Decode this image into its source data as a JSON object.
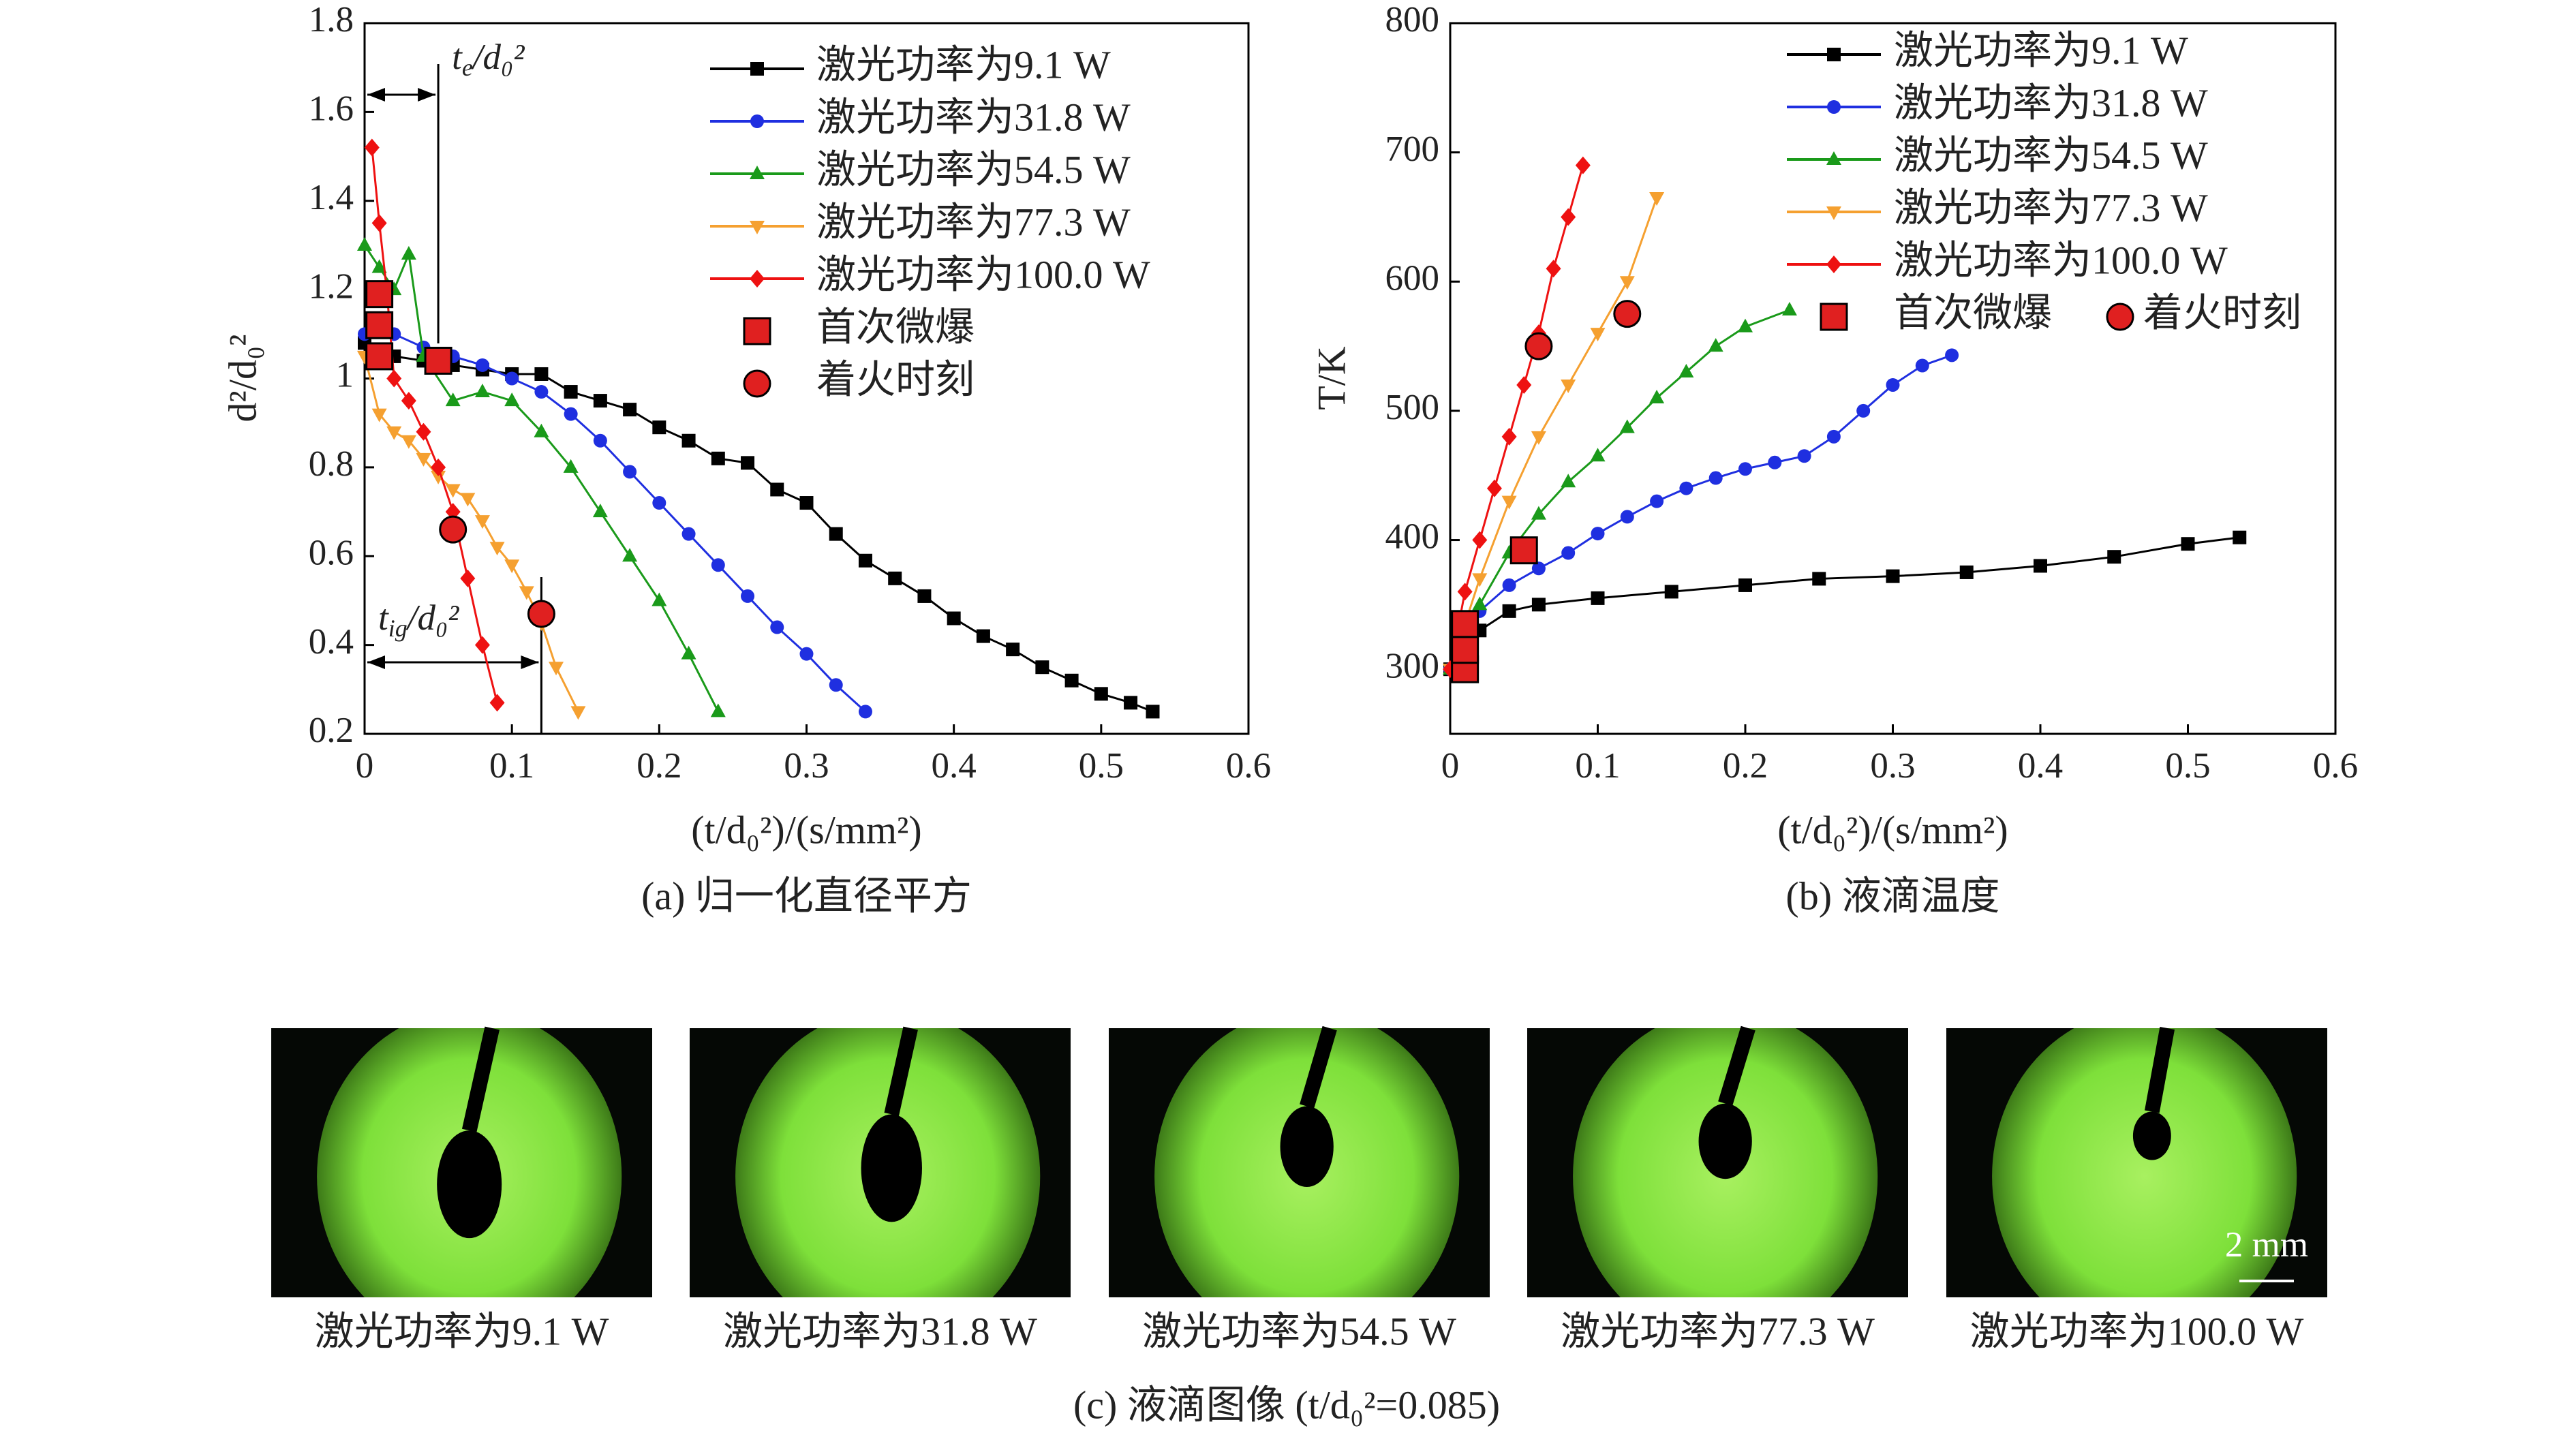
{
  "chart_data": [
    {
      "type": "line",
      "caption": "(a) 归一化直径平方",
      "xlabel": "(t/d₀²)/(s/mm²)",
      "ylabel": "d²/d₀²",
      "xlim": [
        0,
        0.6
      ],
      "xticks": [
        0,
        0.1,
        0.2,
        0.3,
        0.4,
        0.5,
        0.6
      ],
      "ylim": [
        0.2,
        1.8
      ],
      "yticks": [
        0.2,
        0.4,
        0.6,
        0.8,
        1.0,
        1.2,
        1.4,
        1.6,
        1.8
      ],
      "annotations": [
        {
          "parts": [
            "t",
            "e",
            "/d₀²"
          ],
          "x": 0.05
        },
        {
          "parts": [
            "t",
            "ig",
            "/d₀²"
          ],
          "x": 0.12
        }
      ],
      "series": [
        {
          "name": "激光功率为9.1 W",
          "color": "#000000",
          "marker": "square",
          "mode": "lines+markers",
          "x": [
            0,
            0.02,
            0.04,
            0.06,
            0.08,
            0.1,
            0.12,
            0.14,
            0.16,
            0.18,
            0.2,
            0.22,
            0.24,
            0.26,
            0.28,
            0.3,
            0.32,
            0.34,
            0.36,
            0.38,
            0.4,
            0.42,
            0.44,
            0.46,
            0.48,
            0.5,
            0.52,
            0.535
          ],
          "values": [
            1.08,
            1.05,
            1.04,
            1.03,
            1.02,
            1.01,
            1.01,
            0.97,
            0.95,
            0.93,
            0.89,
            0.86,
            0.82,
            0.81,
            0.75,
            0.72,
            0.65,
            0.59,
            0.55,
            0.51,
            0.46,
            0.42,
            0.39,
            0.35,
            0.32,
            0.29,
            0.27,
            0.25
          ]
        },
        {
          "name": "激光功率为31.8 W",
          "color": "#1f2fe0",
          "marker": "circle",
          "mode": "lines+markers",
          "x": [
            0,
            0.02,
            0.04,
            0.06,
            0.08,
            0.1,
            0.12,
            0.14,
            0.16,
            0.18,
            0.2,
            0.22,
            0.24,
            0.26,
            0.28,
            0.3,
            0.32,
            0.34
          ],
          "values": [
            1.1,
            1.1,
            1.07,
            1.05,
            1.03,
            1.0,
            0.97,
            0.92,
            0.86,
            0.79,
            0.72,
            0.65,
            0.58,
            0.51,
            0.44,
            0.38,
            0.31,
            0.25
          ]
        },
        {
          "name": "激光功率为54.5 W",
          "color": "#1a9a1a",
          "marker": "triangle",
          "mode": "lines+markers",
          "x": [
            0,
            0.01,
            0.02,
            0.03,
            0.04,
            0.06,
            0.08,
            0.1,
            0.12,
            0.14,
            0.16,
            0.18,
            0.2,
            0.22,
            0.24
          ],
          "values": [
            1.3,
            1.25,
            1.2,
            1.28,
            1.05,
            0.95,
            0.97,
            0.95,
            0.88,
            0.8,
            0.7,
            0.6,
            0.5,
            0.38,
            0.25
          ]
        },
        {
          "name": "激光功率为77.3 W",
          "color": "#f5a030",
          "marker": "triangle-down",
          "mode": "lines+markers",
          "x": [
            0,
            0.01,
            0.02,
            0.03,
            0.04,
            0.05,
            0.06,
            0.07,
            0.08,
            0.09,
            0.1,
            0.11,
            0.12,
            0.13,
            0.145
          ],
          "values": [
            1.05,
            0.92,
            0.88,
            0.86,
            0.82,
            0.78,
            0.75,
            0.73,
            0.68,
            0.62,
            0.58,
            0.52,
            0.45,
            0.35,
            0.25
          ]
        },
        {
          "name": "激光功率为100.0 W",
          "color": "#ee1111",
          "marker": "diamond",
          "mode": "lines+markers",
          "x": [
            0.005,
            0.01,
            0.015,
            0.02,
            0.03,
            0.04,
            0.05,
            0.06,
            0.07,
            0.08,
            0.09
          ],
          "values": [
            1.52,
            1.35,
            1.2,
            1.0,
            0.95,
            0.88,
            0.8,
            0.7,
            0.55,
            0.4,
            0.27
          ]
        },
        {
          "name": "首次微爆",
          "color": "#e02020",
          "marker": "square",
          "mode": "markers",
          "x": [
            0.01,
            0.01,
            0.01,
            0.05
          ],
          "values": [
            1.19,
            1.12,
            1.05,
            1.04
          ]
        },
        {
          "name": "着火时刻",
          "color": "#e02020",
          "marker": "circle",
          "mode": "markers",
          "x": [
            0.06,
            0.12
          ],
          "values": [
            0.66,
            0.47
          ]
        }
      ]
    },
    {
      "type": "line",
      "caption": "(b) 液滴温度",
      "xlabel": "(t/d₀²)/(s/mm²)",
      "ylabel": "T/K",
      "xlim": [
        0,
        0.6
      ],
      "xticks": [
        0,
        0.1,
        0.2,
        0.3,
        0.4,
        0.5,
        0.6
      ],
      "ylim": [
        250,
        800
      ],
      "yticks": [
        300,
        400,
        500,
        600,
        700,
        800
      ],
      "series": [
        {
          "name": "激光功率为9.1 W",
          "color": "#000000",
          "marker": "square",
          "mode": "lines+markers",
          "x": [
            0,
            0.02,
            0.04,
            0.06,
            0.1,
            0.15,
            0.2,
            0.25,
            0.3,
            0.35,
            0.4,
            0.45,
            0.5,
            0.535
          ],
          "values": [
            300,
            330,
            345,
            350,
            355,
            360,
            365,
            370,
            372,
            375,
            380,
            387,
            397,
            402
          ]
        },
        {
          "name": "激光功率为31.8 W",
          "color": "#1f2fe0",
          "marker": "circle",
          "mode": "lines+markers",
          "x": [
            0,
            0.02,
            0.04,
            0.06,
            0.08,
            0.1,
            0.12,
            0.14,
            0.16,
            0.18,
            0.2,
            0.22,
            0.24,
            0.26,
            0.28,
            0.3,
            0.32,
            0.34
          ],
          "values": [
            300,
            345,
            365,
            378,
            390,
            405,
            418,
            430,
            440,
            448,
            455,
            460,
            465,
            480,
            500,
            520,
            535,
            543
          ]
        },
        {
          "name": "激光功率为54.5 W",
          "color": "#1a9a1a",
          "marker": "triangle",
          "mode": "lines+markers",
          "x": [
            0,
            0.02,
            0.04,
            0.06,
            0.08,
            0.1,
            0.12,
            0.14,
            0.16,
            0.18,
            0.2,
            0.23
          ],
          "values": [
            300,
            350,
            390,
            420,
            445,
            465,
            487,
            510,
            530,
            550,
            565,
            578
          ]
        },
        {
          "name": "激光功率为77.3 W",
          "color": "#f5a030",
          "marker": "triangle-down",
          "mode": "lines+markers",
          "x": [
            0,
            0.02,
            0.04,
            0.06,
            0.08,
            0.1,
            0.12,
            0.14
          ],
          "values": [
            300,
            370,
            430,
            480,
            520,
            560,
            600,
            665
          ]
        },
        {
          "name": "激光功率为100.0 W",
          "color": "#ee1111",
          "marker": "diamond",
          "mode": "lines+markers",
          "x": [
            0,
            0.01,
            0.02,
            0.03,
            0.04,
            0.05,
            0.06,
            0.07,
            0.08,
            0.09
          ],
          "values": [
            300,
            360,
            400,
            440,
            480,
            520,
            560,
            610,
            650,
            690
          ]
        },
        {
          "name": "首次微爆",
          "color": "#e02020",
          "marker": "square",
          "mode": "markers",
          "x": [
            0.01,
            0.01,
            0.01,
            0.05
          ],
          "values": [
            300,
            315,
            335,
            392
          ]
        },
        {
          "name": "着火时刻",
          "color": "#e02020",
          "marker": "circle",
          "mode": "markers",
          "x": [
            0.06,
            0.12
          ],
          "values": [
            550,
            575
          ]
        }
      ]
    }
  ],
  "images": {
    "labels": [
      "激光功率为9.1 W",
      "激光功率为31.8 W",
      "激光功率为54.5 W",
      "激光功率为77.3 W",
      "激光功率为100.0 W"
    ],
    "scale_bar": "2 mm",
    "caption": "(c) 液滴图像 (t/d₀²=0.085)"
  }
}
